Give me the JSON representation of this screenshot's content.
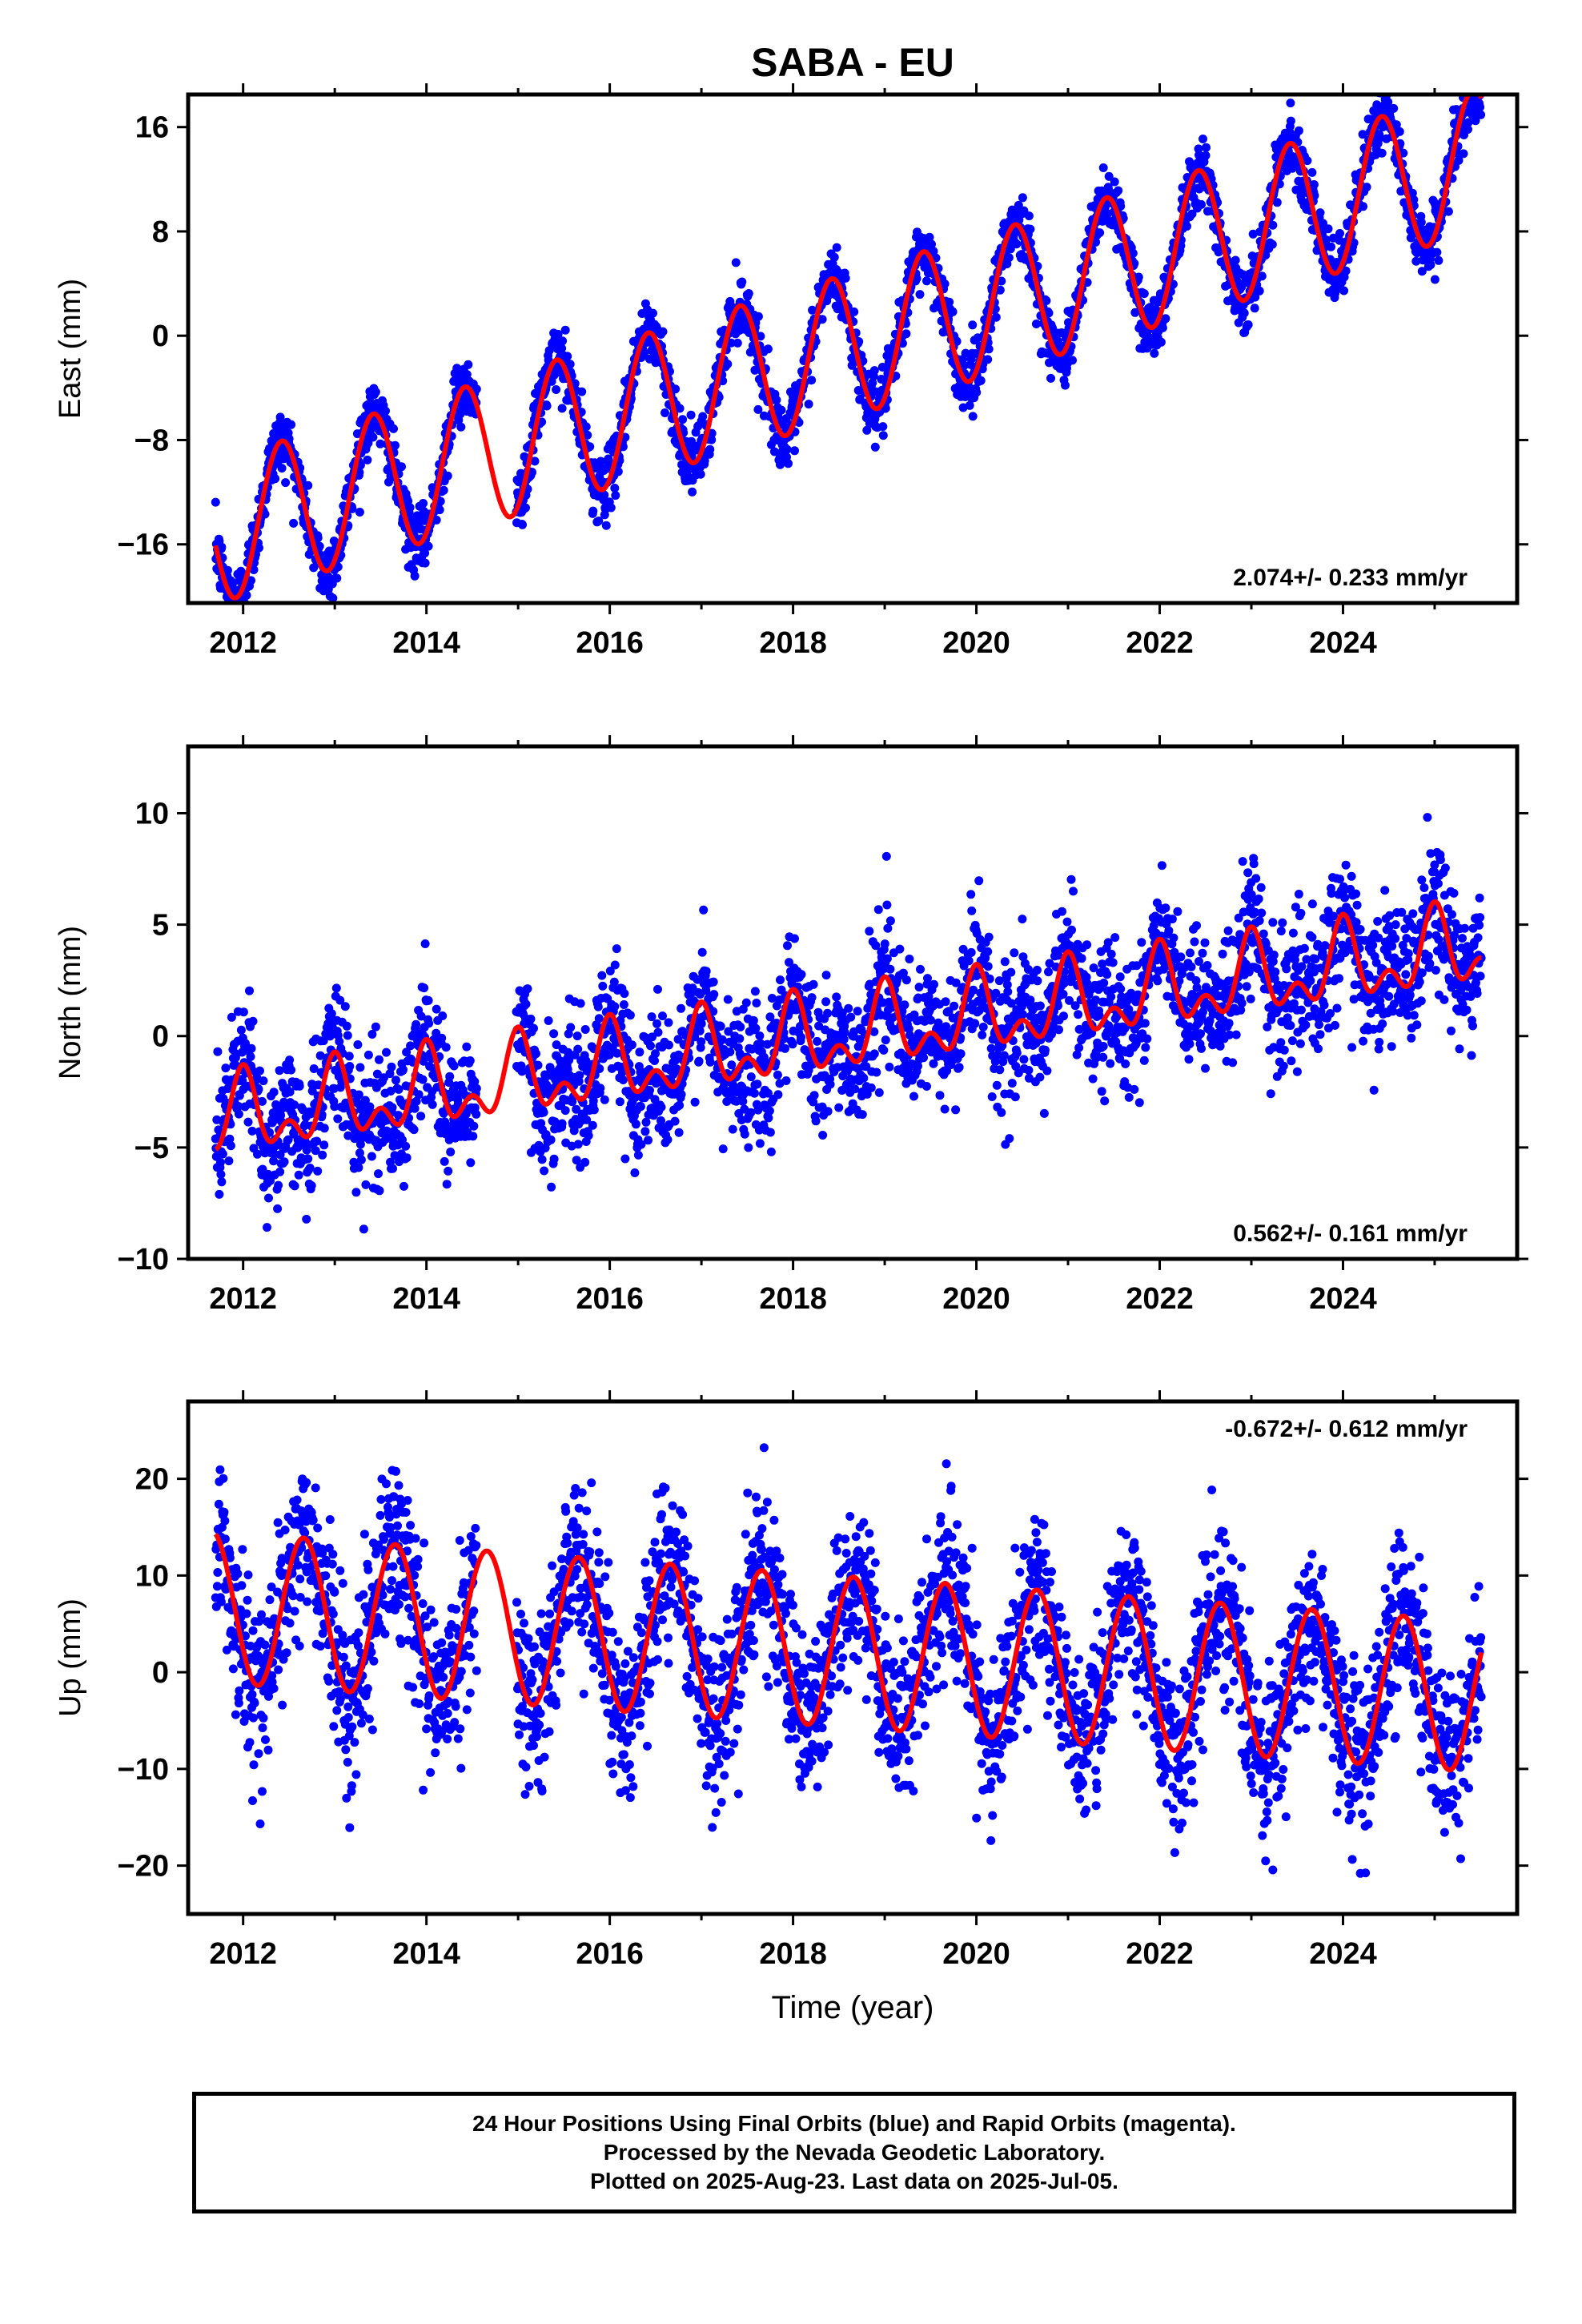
{
  "title": "SABA - EU",
  "colors": {
    "observed": "#0000ff",
    "model": "#ff0000",
    "frame": "#000000"
  },
  "chart_data": [
    {
      "type": "scatter",
      "panel": "east",
      "ylabel": "East (mm)",
      "xlim": [
        2011.4,
        2025.9
      ],
      "ylim": [
        -20.5,
        18.5
      ],
      "yticks": [
        -16,
        -8,
        0,
        8,
        16
      ],
      "xticks": [
        2012,
        2014,
        2016,
        2018,
        2020,
        2022,
        2024
      ],
      "rate_label": "2.074+/- 0.233 mm/yr",
      "series": [
        {
          "role": "observed",
          "color": "#0000ff",
          "x_range": [
            2011.7,
            2025.51
          ],
          "data_gap": [
            2014.55,
            2014.98
          ],
          "trend": {
            "intercept_at_2018": -2.0,
            "slope": 2.074
          },
          "annual_amplitude": 5.5,
          "annual_phase_peak": 0.42,
          "scatter_sd": 1.2
        },
        {
          "role": "model",
          "color": "#ff0000",
          "x_range": [
            2011.7,
            2025.51
          ],
          "trend": {
            "intercept_at_2018": -2.0,
            "slope": 2.074
          },
          "annual_amplitude": 5.5,
          "annual_phase_peak": 0.42
        }
      ]
    },
    {
      "type": "scatter",
      "panel": "north",
      "ylabel": "North (mm)",
      "xlim": [
        2011.4,
        2025.9
      ],
      "ylim": [
        -10,
        13
      ],
      "yticks": [
        -10,
        -5,
        0,
        5,
        10
      ],
      "xticks": [
        2012,
        2014,
        2016,
        2018,
        2020,
        2022,
        2024
      ],
      "rate_label": "0.562+/- 0.161 mm/yr",
      "series": [
        {
          "role": "observed",
          "color": "#0000ff",
          "x_range": [
            2011.7,
            2025.51
          ],
          "data_gap": [
            2014.55,
            2014.98
          ],
          "trend": {
            "intercept_at_2018": -0.3,
            "slope": 0.562
          },
          "annual_amplitude": 1.4,
          "semiannual_amplitude": 1.0,
          "annual_phase_peak": 0.0,
          "scatter_sd": 1.5
        },
        {
          "role": "model",
          "color": "#ff0000",
          "x_range": [
            2011.7,
            2025.51
          ],
          "trend": {
            "intercept_at_2018": -0.3,
            "slope": 0.562
          },
          "annual_amplitude": 1.4,
          "semiannual_amplitude": 1.0,
          "annual_phase_peak": 0.0
        }
      ]
    },
    {
      "type": "scatter",
      "panel": "up",
      "ylabel": "Up (mm)",
      "xlabel": "Time (year)",
      "xlim": [
        2011.4,
        2025.9
      ],
      "ylim": [
        -25,
        28
      ],
      "yticks": [
        -20,
        -10,
        0,
        10,
        20
      ],
      "xticks": [
        2012,
        2014,
        2016,
        2018,
        2020,
        2022,
        2024
      ],
      "rate_label": "-0.672+/- 0.612 mm/yr",
      "series": [
        {
          "role": "observed",
          "color": "#0000ff",
          "x_range": [
            2011.7,
            2025.51
          ],
          "data_gap": [
            2014.55,
            2014.98
          ],
          "trend": {
            "intercept_at_2018": 2.5,
            "slope": -0.672
          },
          "annual_amplitude": 7.8,
          "annual_phase_peak": 0.66,
          "scatter_sd": 4.2
        },
        {
          "role": "model",
          "color": "#ff0000",
          "x_range": [
            2011.7,
            2025.51
          ],
          "trend": {
            "intercept_at_2018": 2.5,
            "slope": -0.672
          },
          "annual_amplitude": 7.8,
          "annual_phase_peak": 0.66
        }
      ]
    }
  ],
  "caption": {
    "line1": "24 Hour Positions Using Final Orbits (blue) and Rapid Orbits (magenta).",
    "line2": "Processed by the Nevada Geodetic Laboratory.",
    "line3": "Plotted on 2025-Aug-23. Last data on 2025-Jul-05."
  }
}
